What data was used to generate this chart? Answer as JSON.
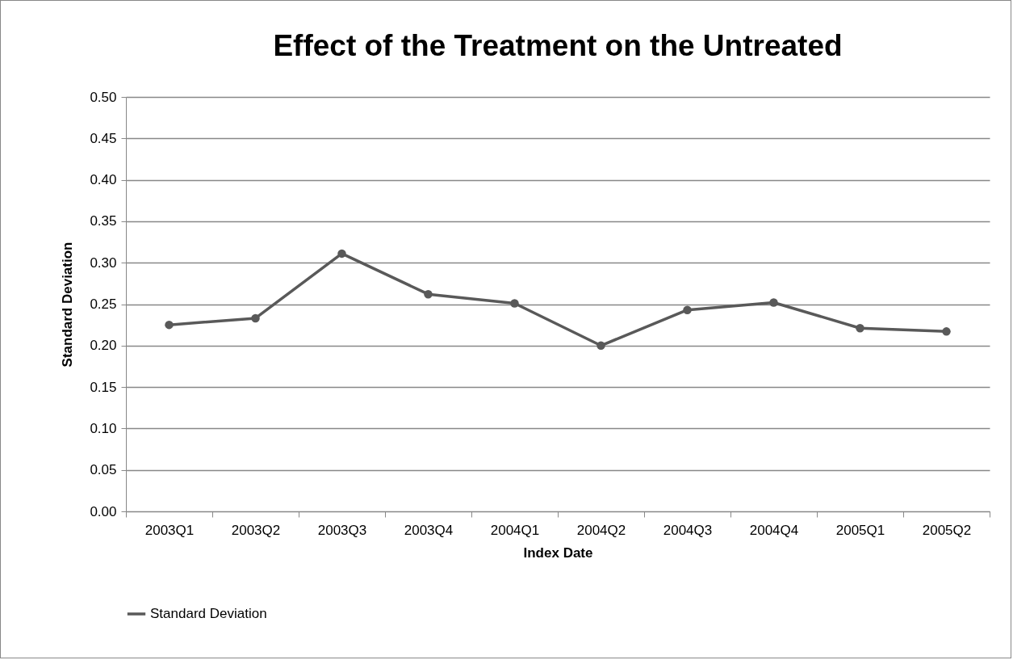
{
  "chart_data": {
    "type": "line",
    "title": "Effect of the Treatment on the Untreated",
    "xlabel": "Index Date",
    "ylabel": "Standard Deviation",
    "categories": [
      "2003Q1",
      "2003Q2",
      "2003Q3",
      "2003Q4",
      "2004Q1",
      "2004Q2",
      "2004Q3",
      "2004Q4",
      "2005Q1",
      "2005Q2"
    ],
    "series": [
      {
        "name": "Standard Deviation",
        "color": "#595959",
        "values": [
          0.225,
          0.233,
          0.311,
          0.262,
          0.251,
          0.2,
          0.243,
          0.252,
          0.221,
          0.217
        ]
      }
    ],
    "ylim": [
      0,
      0.5
    ],
    "yticks": [
      {
        "value": 0,
        "label": "0.00"
      },
      {
        "value": 0.05,
        "label": "0.05"
      },
      {
        "value": 0.1,
        "label": "0.10"
      },
      {
        "value": 0.15,
        "label": "0.15"
      },
      {
        "value": 0.2,
        "label": "0.20"
      },
      {
        "value": 0.25,
        "label": "0.25"
      },
      {
        "value": 0.3,
        "label": "0.30"
      },
      {
        "value": 0.35,
        "label": "0.35"
      },
      {
        "value": 0.4,
        "label": "0.40"
      },
      {
        "value": 0.45,
        "label": "0.45"
      },
      {
        "value": 0.5,
        "label": "0.50"
      }
    ],
    "grid": "y",
    "legend": "bottom",
    "marker": "circle",
    "line_style": "solid"
  }
}
